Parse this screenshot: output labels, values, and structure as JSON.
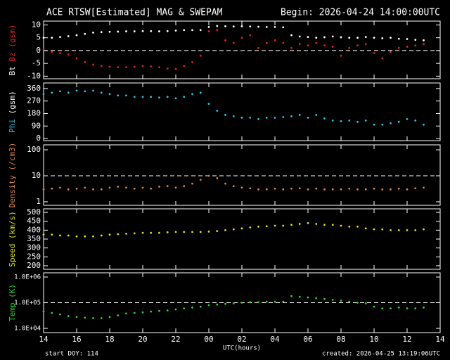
{
  "header": {
    "title": "ACE RTSW[Estimated] MAG & SWEPAM",
    "begin": "Begin: 2026-04-24 14:00:00UTC"
  },
  "footer": {
    "start": "start DOY: 114",
    "created": "created: 2026-04-25 13:19:06UTC"
  },
  "chart_data": [
    {
      "type": "scatter",
      "ylabel": [
        {
          "text": "Bt",
          "color": "#ffffff"
        },
        {
          "text": "Bz (gsm)",
          "color": "#e02020"
        }
      ],
      "x": [
        0,
        0.5,
        1,
        1.5,
        2,
        2.5,
        3,
        3.5,
        4,
        4.5,
        5,
        5.5,
        6,
        6.5,
        7,
        7.5,
        8,
        8.5,
        9,
        9.5,
        10,
        10.5,
        11,
        11.5,
        12,
        12.5,
        13,
        13.5,
        14,
        14.5,
        15,
        15.5,
        16,
        16.5,
        17,
        17.5,
        18,
        18.5,
        19,
        19.5,
        20,
        20.5,
        21,
        21.5,
        22,
        22.5,
        23
      ],
      "series": [
        {
          "name": "Bt",
          "color": "#ffffff",
          "values": [
            5,
            5,
            5.3,
            5.6,
            6,
            6.5,
            7,
            7.2,
            7.3,
            7.4,
            7.5,
            7.5,
            7.6,
            7.6,
            7.5,
            7.6,
            7.8,
            8,
            8,
            8,
            9.2,
            9.6,
            9.5,
            9.4,
            9.5,
            9.4,
            9.3,
            9.2,
            9.2,
            9.1,
            6,
            5.5,
            5.3,
            5,
            5.2,
            5.5,
            5.2,
            5,
            5,
            5.3,
            5,
            4.8,
            5,
            4.6,
            4.5,
            4.2,
            4
          ]
        },
        {
          "name": "Bz",
          "color": "#e02020",
          "values": [
            0.5,
            -0.5,
            -1,
            -1.5,
            -3,
            -4.5,
            -5.5,
            -6,
            -6.3,
            -6.5,
            -6.5,
            -6.3,
            -6,
            -6.2,
            -6.5,
            -7,
            -7.2,
            -6,
            -4.5,
            -2,
            7.5,
            8,
            4,
            3,
            5,
            6,
            1,
            3,
            4,
            3,
            1,
            2.5,
            2,
            3,
            2,
            1.5,
            -2,
            1,
            2,
            2.5,
            -1,
            -3,
            -0.5,
            1,
            1.5,
            2,
            2.5
          ]
        }
      ],
      "ylim": [
        -11,
        11.5
      ],
      "yticks": [
        -10,
        -5,
        0,
        5,
        10
      ],
      "hline": 0
    },
    {
      "type": "scatter",
      "ylabel": [
        {
          "text": "Phi",
          "color": "#30c0e0"
        },
        {
          "text": "(gsm)",
          "color": "#ffffff"
        }
      ],
      "x": [
        0,
        0.5,
        1,
        1.5,
        2,
        2.5,
        3,
        3.5,
        4,
        4.5,
        5,
        5.5,
        6,
        6.5,
        7,
        7.5,
        8,
        8.5,
        9,
        9.5,
        10,
        10.5,
        11,
        11.5,
        12,
        12.5,
        13,
        13.5,
        14,
        14.5,
        15,
        15.5,
        16,
        16.5,
        17,
        17.5,
        18,
        18.5,
        19,
        19.5,
        20,
        20.5,
        21,
        21.5,
        22,
        22.5,
        23
      ],
      "series": [
        {
          "name": "Phi",
          "color": "#30c0e0",
          "values": [
            320,
            330,
            340,
            330,
            345,
            340,
            345,
            330,
            320,
            310,
            310,
            300,
            300,
            300,
            295,
            300,
            290,
            300,
            320,
            330,
            250,
            200,
            170,
            160,
            150,
            150,
            140,
            150,
            150,
            155,
            160,
            170,
            150,
            170,
            145,
            130,
            125,
            130,
            120,
            130,
            100,
            100,
            110,
            120,
            140,
            130,
            100
          ]
        }
      ],
      "ylim": [
        -15,
        400
      ],
      "yticks": [
        0,
        90,
        180,
        270,
        360
      ]
    },
    {
      "type": "scatter",
      "ylabel": [
        {
          "text": "Density (/cm3)",
          "color": "#e08040"
        }
      ],
      "yscale": "log",
      "x": [
        0,
        0.5,
        1,
        1.5,
        2,
        2.5,
        3,
        3.5,
        4,
        4.5,
        5,
        5.5,
        6,
        6.5,
        7,
        7.5,
        8,
        8.5,
        9,
        9.5,
        10,
        10.5,
        11,
        11.5,
        12,
        12.5,
        13,
        13.5,
        14,
        14.5,
        15,
        15.5,
        16,
        16.5,
        17,
        17.5,
        18,
        18.5,
        19,
        19.5,
        20,
        20.5,
        21,
        21.5,
        22,
        22.5,
        23
      ],
      "series": [
        {
          "name": "Density",
          "color": "#e08040",
          "values": [
            3,
            3.2,
            3.5,
            3,
            3.2,
            3.5,
            3,
            3,
            3.5,
            3.8,
            3.5,
            3.2,
            3.5,
            3.2,
            3.8,
            4,
            3.5,
            4,
            5,
            7,
            10,
            8,
            5,
            4,
            3.5,
            3.3,
            3,
            3,
            3.2,
            3,
            3.2,
            3.3,
            3,
            3.2,
            3,
            3,
            3,
            3.2,
            3,
            3,
            3.2,
            3,
            3,
            3.2,
            3,
            3.3,
            3.5
          ]
        }
      ],
      "ylim": [
        0.73,
        155
      ],
      "yticks": [
        1,
        10,
        100
      ],
      "hline": 10
    },
    {
      "type": "scatter",
      "ylabel": [
        {
          "text": "Speed (km/s)",
          "color": "#e0e020"
        }
      ],
      "x": [
        0,
        0.5,
        1,
        1.5,
        2,
        2.5,
        3,
        3.5,
        4,
        4.5,
        5,
        5.5,
        6,
        6.5,
        7,
        7.5,
        8,
        8.5,
        9,
        9.5,
        10,
        10.5,
        11,
        11.5,
        12,
        12.5,
        13,
        13.5,
        14,
        14.5,
        15,
        15.5,
        16,
        16.5,
        17,
        17.5,
        18,
        18.5,
        19,
        19.5,
        20,
        20.5,
        21,
        21.5,
        22,
        22.5,
        23
      ],
      "series": [
        {
          "name": "Speed",
          "color": "#e0e020",
          "values": [
            375,
            375,
            370,
            370,
            365,
            365,
            365,
            370,
            375,
            378,
            380,
            382,
            385,
            385,
            385,
            388,
            390,
            390,
            390,
            390,
            392,
            395,
            400,
            405,
            410,
            415,
            420,
            422,
            425,
            425,
            430,
            435,
            440,
            435,
            430,
            430,
            425,
            420,
            420,
            410,
            405,
            405,
            400,
            400,
            400,
            400,
            405
          ]
        }
      ],
      "ylim": [
        180,
        520
      ],
      "yticks": [
        200,
        250,
        300,
        350,
        400,
        450,
        500
      ]
    },
    {
      "type": "scatter",
      "ylabel": [
        {
          "text": "Temp (K)",
          "color": "#30d030"
        }
      ],
      "yscale": "log",
      "xlabel": "UTC(hours)",
      "x": [
        0,
        0.5,
        1,
        1.5,
        2,
        2.5,
        3,
        3.5,
        4,
        4.5,
        5,
        5.5,
        6,
        6.5,
        7,
        7.5,
        8,
        8.5,
        9,
        9.5,
        10,
        10.5,
        11,
        11.5,
        12,
        12.5,
        13,
        13.5,
        14,
        14.5,
        15,
        15.5,
        16,
        16.5,
        17,
        17.5,
        18,
        18.5,
        19,
        19.5,
        20,
        20.5,
        21,
        21.5,
        22,
        22.5,
        23
      ],
      "series": [
        {
          "name": "Temp",
          "color": "#30d030",
          "values": [
            45000,
            40000,
            35000,
            30000,
            28000,
            26000,
            25000,
            25000,
            28000,
            32000,
            38000,
            40000,
            42000,
            45000,
            48000,
            50000,
            55000,
            60000,
            65000,
            70000,
            80000,
            85000,
            90000,
            95000,
            100000,
            105000,
            105000,
            110000,
            110000,
            110000,
            180000,
            170000,
            160000,
            150000,
            140000,
            130000,
            120000,
            110000,
            100000,
            95000,
            70000,
            60000,
            60000,
            65000,
            60000,
            60000,
            65000
          ]
        }
      ],
      "ylim": [
        6850,
        1460000
      ],
      "yticks": [
        {
          "value": 10000,
          "label": "1.0E+04"
        },
        {
          "value": 100000,
          "label": "1.0E+05"
        },
        {
          "value": 1000000,
          "label": "1.0E+06"
        }
      ],
      "hline": 100000,
      "xlim": [
        0,
        24
      ],
      "xticks": [
        {
          "value": 0,
          "label": "14"
        },
        {
          "value": 2,
          "label": "16"
        },
        {
          "value": 4,
          "label": "18"
        },
        {
          "value": 6,
          "label": "20"
        },
        {
          "value": 8,
          "label": "22"
        },
        {
          "value": 10,
          "label": "00"
        },
        {
          "value": 12,
          "label": "02"
        },
        {
          "value": 14,
          "label": "04"
        },
        {
          "value": 16,
          "label": "06"
        },
        {
          "value": 18,
          "label": "08"
        },
        {
          "value": 20,
          "label": "10"
        },
        {
          "value": 22,
          "label": "12"
        },
        {
          "value": 24,
          "label": "14"
        }
      ]
    }
  ]
}
